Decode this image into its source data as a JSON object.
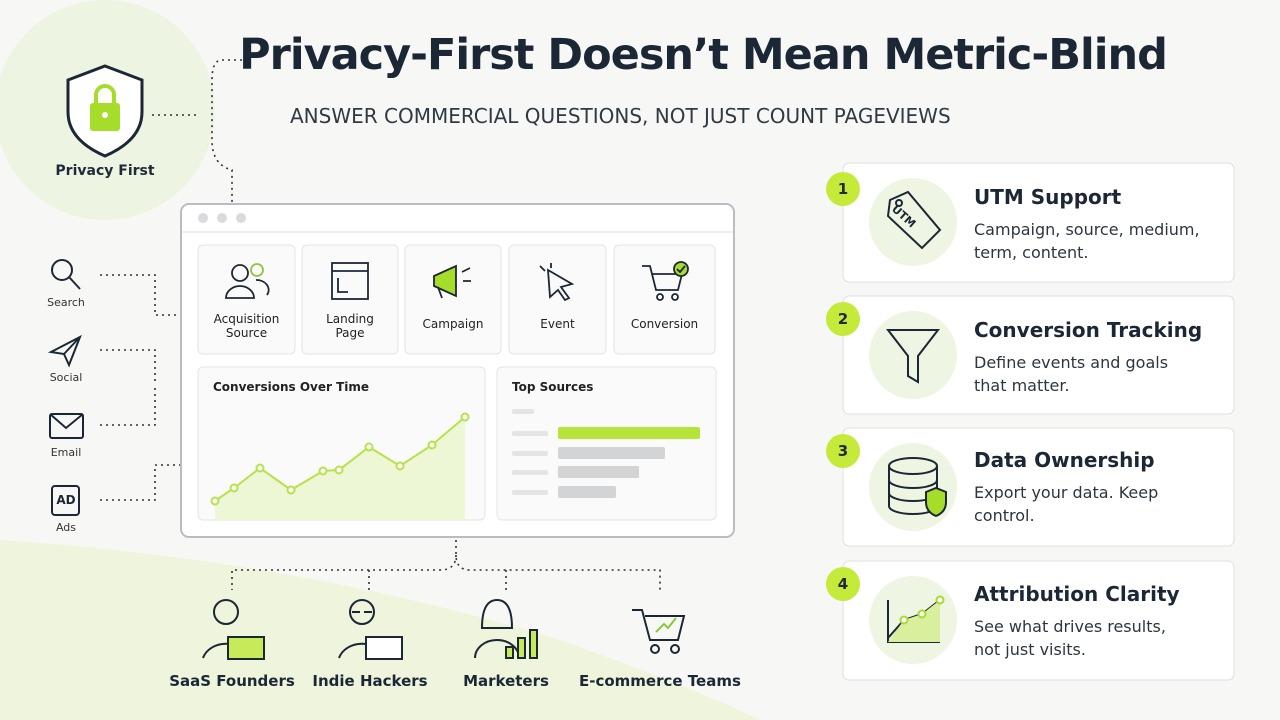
{
  "header": {
    "title": "Privacy-First Doesn’t Mean Metric-Blind",
    "subtitle": "ANSWER COMMERCIAL QUESTIONS, NOT JUST COUNT PAGEVIEWS"
  },
  "badge": {
    "label": "Privacy First"
  },
  "channels": [
    {
      "label": "Search"
    },
    {
      "label": "Social"
    },
    {
      "label": "Email"
    },
    {
      "icon": "AD",
      "label": "Ads"
    }
  ],
  "dashboard": {
    "tiles": [
      "Acquisition Source",
      "Landing Page",
      "Campaign",
      "Event",
      "Conversion"
    ],
    "chart_title": "Conversions Over Time",
    "sources_title": "Top Sources"
  },
  "audiences": [
    "SaaS Founders",
    "Indie Hackers",
    "Marketers",
    "E-commerce Teams"
  ],
  "features": [
    {
      "number": 1,
      "icon": "UTM",
      "title": "UTM Support",
      "description": "Campaign, source, medium, term, content."
    },
    {
      "number": 2,
      "title": "Conversion Tracking",
      "description": "Define events and goals that matter."
    },
    {
      "number": 3,
      "title": "Data Ownership",
      "description": "Export your data. Keep control."
    },
    {
      "number": 4,
      "title": "Attribution Clarity",
      "description": "See what drives results, not just visits."
    }
  ]
}
